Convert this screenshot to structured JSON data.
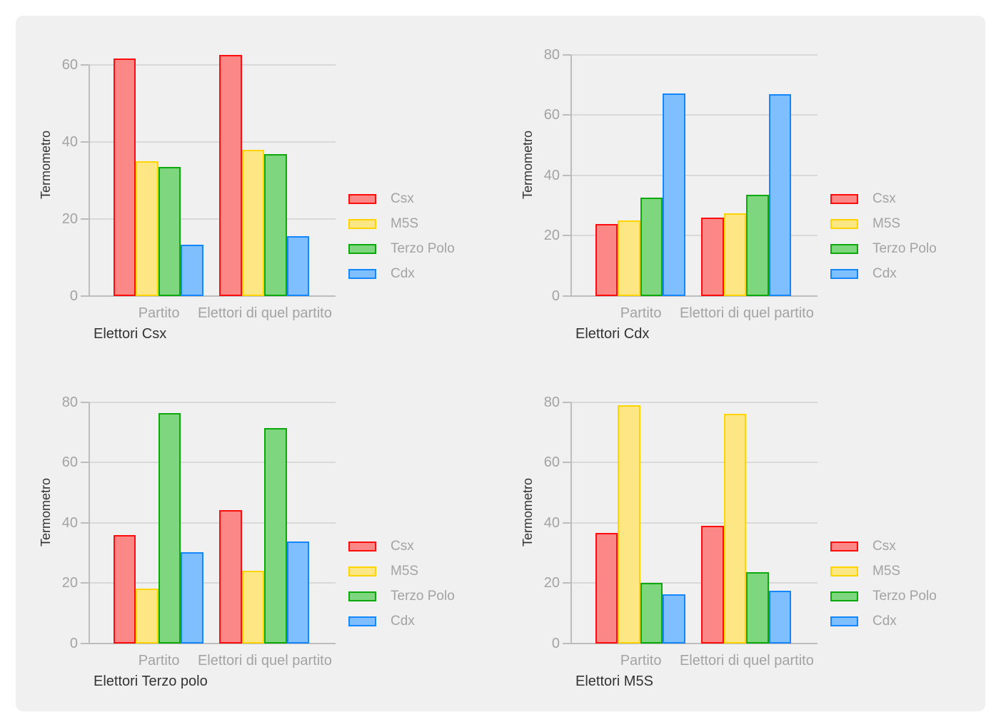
{
  "panel": {
    "page_background": "#ffffff",
    "panel_background": "#f0f0f0",
    "gridline_color": "#d9d9d9",
    "axis_color": "#bdbdbd",
    "muted_text_color": "#a3a3a3",
    "dark_text_color": "#333333"
  },
  "series_styles": [
    {
      "name": "Csx",
      "fill": "#fb8787",
      "border": "#ff0d0d"
    },
    {
      "name": "M5S",
      "fill": "#fde684",
      "border": "#ffd400"
    },
    {
      "name": "Terzo Polo",
      "fill": "#7ed67e",
      "border": "#0ca80c"
    },
    {
      "name": "Cdx",
      "fill": "#80bfff",
      "border": "#1487ff"
    }
  ],
  "chart_data": [
    {
      "type": "bar",
      "title": "Elettori Csx",
      "ylabel": "Termometro",
      "categories": [
        "Partito",
        "Elettori di quel partito"
      ],
      "legend": [
        "Csx",
        "M5S",
        "Terzo Polo",
        "Cdx"
      ],
      "legend_position": "right",
      "grid": true,
      "yticks": [
        0,
        20,
        40,
        60
      ],
      "ylim": [
        0,
        63
      ],
      "series": [
        {
          "name": "Csx",
          "values": [
            61.7,
            62.7
          ]
        },
        {
          "name": "M5S",
          "values": [
            35.0,
            38.0
          ]
        },
        {
          "name": "Terzo Polo",
          "values": [
            33.6,
            36.9
          ]
        },
        {
          "name": "Cdx",
          "values": [
            13.3,
            15.5
          ]
        }
      ]
    },
    {
      "type": "bar",
      "title": "Elettori Cdx",
      "ylabel": "Termometro",
      "categories": [
        "Partito",
        "Elettori di quel partito"
      ],
      "legend": [
        "Csx",
        "M5S",
        "Terzo Polo",
        "Cdx"
      ],
      "legend_position": "right",
      "grid": true,
      "yticks": [
        0,
        20,
        40,
        60,
        80
      ],
      "ylim": [
        0,
        80.4
      ],
      "series": [
        {
          "name": "Csx",
          "values": [
            23.8,
            26.0
          ]
        },
        {
          "name": "M5S",
          "values": [
            25.0,
            27.5
          ]
        },
        {
          "name": "Terzo Polo",
          "values": [
            32.7,
            33.6
          ]
        },
        {
          "name": "Cdx",
          "values": [
            67.2,
            66.9
          ]
        }
      ]
    },
    {
      "type": "bar",
      "title": "Elettori Terzo polo",
      "ylabel": "Termometro",
      "categories": [
        "Partito",
        "Elettori di quel partito"
      ],
      "legend": [
        "Csx",
        "M5S",
        "Terzo Polo",
        "Cdx"
      ],
      "legend_position": "right",
      "grid": true,
      "yticks": [
        0,
        20,
        40,
        60,
        80
      ],
      "ylim": [
        0,
        80.4
      ],
      "series": [
        {
          "name": "Csx",
          "values": [
            35.9,
            44.2
          ]
        },
        {
          "name": "M5S",
          "values": [
            18.1,
            24.2
          ]
        },
        {
          "name": "Terzo Polo",
          "values": [
            76.3,
            71.4
          ]
        },
        {
          "name": "Cdx",
          "values": [
            30.3,
            33.8
          ]
        }
      ]
    },
    {
      "type": "bar",
      "title": "Elettori M5S",
      "ylabel": "Termometro",
      "categories": [
        "Partito",
        "Elettori di quel partito"
      ],
      "legend": [
        "Csx",
        "M5S",
        "Terzo Polo",
        "Cdx"
      ],
      "legend_position": "right",
      "grid": true,
      "yticks": [
        0,
        20,
        40,
        60,
        80
      ],
      "ylim": [
        0,
        80.4
      ],
      "series": [
        {
          "name": "Csx",
          "values": [
            36.7,
            38.9
          ]
        },
        {
          "name": "M5S",
          "values": [
            78.9,
            76.2
          ]
        },
        {
          "name": "Terzo Polo",
          "values": [
            20.1,
            23.7
          ]
        },
        {
          "name": "Cdx",
          "values": [
            16.4,
            17.5
          ]
        }
      ]
    }
  ]
}
